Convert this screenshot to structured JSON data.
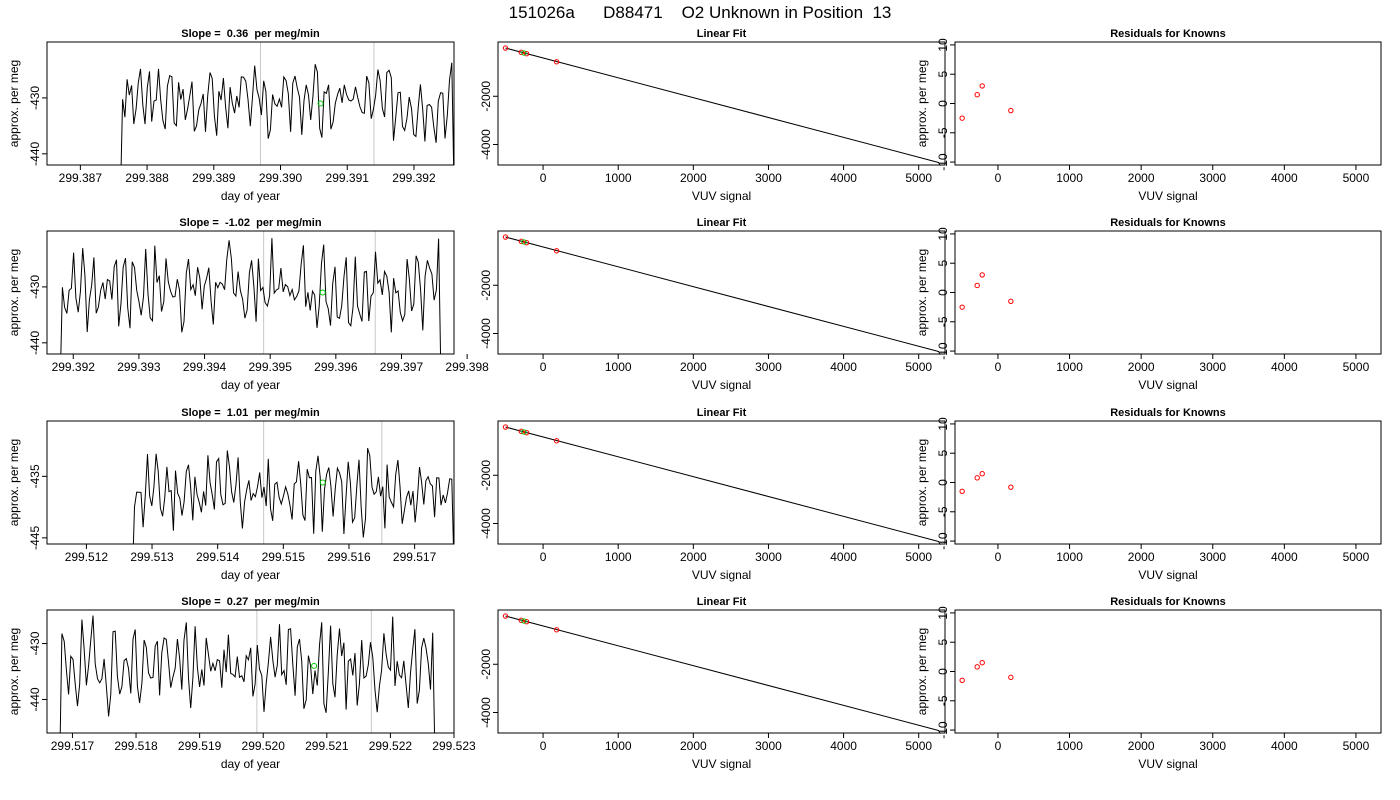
{
  "page_title": "151026a      D88471    O2 Unknown in Position  13",
  "colors": {
    "series_line": "#000000",
    "known_point": "#ff0000",
    "unknown_point": "#00cc00",
    "vertical_marker": "#c8c8c8"
  },
  "chart_data": [
    {
      "row": 1,
      "panel": "time-series",
      "type": "line",
      "title": "Slope =  0.36  per meg/min",
      "xlabel": "day of year",
      "ylabel": "approx. per meg",
      "xlim": [
        299.3865,
        299.3926
      ],
      "ylim": [
        -442,
        -420
      ],
      "xticks": [
        299.387,
        299.388,
        299.389,
        299.39,
        299.391,
        299.392
      ],
      "xtick_labels": [
        "299.387",
        "299.388",
        "299.389",
        "299.390",
        "299.391",
        "299.392"
      ],
      "yticks": [
        -430,
        -440
      ],
      "ytick_labels": [
        "-430",
        "-440"
      ],
      "vlines": [
        299.3897,
        299.3914
      ],
      "unknown_point": {
        "x": 299.3906,
        "y": -431
      },
      "x_start": 299.3876,
      "x_end": 299.3926,
      "n_points": 150,
      "y_mean": -430.5,
      "y_amp": 6,
      "seed": 3
    },
    {
      "row": 1,
      "panel": "linear-fit",
      "type": "scatter",
      "title": "Linear Fit",
      "xlabel": "VUV signal",
      "ylabel": "",
      "xlim": [
        -600,
        5350
      ],
      "ylim": [
        -4850,
        250
      ],
      "xticks": [
        0,
        1000,
        2000,
        3000,
        4000,
        5000
      ],
      "xtick_labels": [
        "0",
        "1000",
        "2000",
        "3000",
        "4000",
        "5000"
      ],
      "yticks": [
        -2000,
        -4000
      ],
      "ytick_labels": [
        "-2000",
        "-4000"
      ],
      "fit_line": {
        "x": [
          -500,
          5270
        ],
        "y": [
          0,
          -4750
        ]
      },
      "knowns": [
        {
          "x": -500,
          "y": 0
        },
        {
          "x": -290,
          "y": -180
        },
        {
          "x": -220,
          "y": -235
        },
        {
          "x": 180,
          "y": -570
        }
      ],
      "unknowns": [
        {
          "x": -255,
          "y": -205
        }
      ]
    },
    {
      "row": 1,
      "panel": "residuals",
      "type": "scatter",
      "title": "Residuals for Knowns",
      "xlabel": "VUV signal",
      "ylabel": "approx. per meg",
      "xlim": [
        -600,
        5350
      ],
      "ylim": [
        -10.5,
        10.5
      ],
      "xticks": [
        0,
        1000,
        2000,
        3000,
        4000,
        5000
      ],
      "xtick_labels": [
        "0",
        "1000",
        "2000",
        "3000",
        "4000",
        "5000"
      ],
      "yticks": [
        10,
        5,
        0,
        -5,
        -10
      ],
      "ytick_labels": [
        "10",
        "5",
        "0",
        "-5",
        "-10"
      ],
      "knowns": [
        {
          "x": -500,
          "y": -2.5
        },
        {
          "x": -290,
          "y": 1.5
        },
        {
          "x": -220,
          "y": 3
        },
        {
          "x": 180,
          "y": -1.2
        }
      ]
    },
    {
      "row": 2,
      "panel": "time-series",
      "type": "line",
      "title": "Slope =  -1.02  per meg/min",
      "xlabel": "day of year",
      "ylabel": "approx. per meg",
      "xlim": [
        299.3916,
        299.3978
      ],
      "ylim": [
        -442,
        -420
      ],
      "xticks": [
        299.392,
        299.393,
        299.394,
        299.395,
        299.396,
        299.397,
        299.398
      ],
      "xtick_labels": [
        "299.392",
        "299.393",
        "299.394",
        "299.395",
        "299.396",
        "299.397",
        "299.398"
      ],
      "yticks": [
        -430,
        -440
      ],
      "ytick_labels": [
        "-430",
        "-440"
      ],
      "vlines": [
        299.3949,
        299.3966
      ],
      "unknown_point": {
        "x": 299.3958,
        "y": -431
      },
      "x_start": 299.3918,
      "x_end": 299.3976,
      "n_points": 170,
      "y_mean": -430,
      "y_amp": 7,
      "seed": 7
    },
    {
      "row": 2,
      "panel": "linear-fit",
      "type": "scatter",
      "title": "Linear Fit",
      "xlabel": "VUV signal",
      "ylabel": "",
      "xlim": [
        -600,
        5350
      ],
      "ylim": [
        -4850,
        250
      ],
      "xticks": [
        0,
        1000,
        2000,
        3000,
        4000,
        5000
      ],
      "xtick_labels": [
        "0",
        "1000",
        "2000",
        "3000",
        "4000",
        "5000"
      ],
      "yticks": [
        -2000,
        -4000
      ],
      "ytick_labels": [
        "-2000",
        "-4000"
      ],
      "fit_line": {
        "x": [
          -500,
          5270
        ],
        "y": [
          0,
          -4750
        ]
      },
      "knowns": [
        {
          "x": -500,
          "y": 0
        },
        {
          "x": -290,
          "y": -180
        },
        {
          "x": -220,
          "y": -235
        },
        {
          "x": 180,
          "y": -570
        }
      ],
      "unknowns": [
        {
          "x": -255,
          "y": -205
        }
      ]
    },
    {
      "row": 2,
      "panel": "residuals",
      "type": "scatter",
      "title": "Residuals for Knowns",
      "xlabel": "VUV signal",
      "ylabel": "approx. per meg",
      "xlim": [
        -600,
        5350
      ],
      "ylim": [
        -10.5,
        10.5
      ],
      "xticks": [
        0,
        1000,
        2000,
        3000,
        4000,
        5000
      ],
      "xtick_labels": [
        "0",
        "1000",
        "2000",
        "3000",
        "4000",
        "5000"
      ],
      "yticks": [
        10,
        5,
        0,
        -5,
        -10
      ],
      "ytick_labels": [
        "10",
        "5",
        "0",
        "-5",
        "-10"
      ],
      "knowns": [
        {
          "x": -500,
          "y": -2.5
        },
        {
          "x": -290,
          "y": 1.2
        },
        {
          "x": -220,
          "y": 3
        },
        {
          "x": 180,
          "y": -1.5
        }
      ]
    },
    {
      "row": 3,
      "panel": "time-series",
      "type": "line",
      "title": "Slope =  1.01  per meg/min",
      "xlabel": "day of year",
      "ylabel": "approx. per meg",
      "xlim": [
        299.5114,
        299.5176
      ],
      "ylim": [
        -446,
        -426
      ],
      "xticks": [
        299.512,
        299.513,
        299.514,
        299.515,
        299.516,
        299.517
      ],
      "xtick_labels": [
        "299.512",
        "299.513",
        "299.514",
        "299.515",
        "299.516",
        "299.517"
      ],
      "yticks": [
        -435,
        -445
      ],
      "ytick_labels": [
        "-435",
        "-445"
      ],
      "vlines": [
        299.5147,
        299.5165
      ],
      "unknown_point": {
        "x": 299.5156,
        "y": -436
      },
      "x_start": 299.5127,
      "x_end": 299.5176,
      "n_points": 150,
      "y_mean": -437.5,
      "y_amp": 6,
      "seed": 11
    },
    {
      "row": 3,
      "panel": "linear-fit",
      "type": "scatter",
      "title": "Linear Fit",
      "xlabel": "VUV signal",
      "ylabel": "",
      "xlim": [
        -600,
        5350
      ],
      "ylim": [
        -4850,
        250
      ],
      "xticks": [
        0,
        1000,
        2000,
        3000,
        4000,
        5000
      ],
      "xtick_labels": [
        "0",
        "1000",
        "2000",
        "3000",
        "4000",
        "5000"
      ],
      "yticks": [
        -2000,
        -4000
      ],
      "ytick_labels": [
        "-2000",
        "-4000"
      ],
      "fit_line": {
        "x": [
          -500,
          5270
        ],
        "y": [
          0,
          -4750
        ]
      },
      "knowns": [
        {
          "x": -500,
          "y": 0
        },
        {
          "x": -290,
          "y": -180
        },
        {
          "x": -220,
          "y": -235
        },
        {
          "x": 180,
          "y": -570
        }
      ],
      "unknowns": [
        {
          "x": -255,
          "y": -205
        }
      ]
    },
    {
      "row": 3,
      "panel": "residuals",
      "type": "scatter",
      "title": "Residuals for Knowns",
      "xlabel": "VUV signal",
      "ylabel": "approx. per meg",
      "xlim": [
        -600,
        5350
      ],
      "ylim": [
        -10.5,
        10.5
      ],
      "xticks": [
        0,
        1000,
        2000,
        3000,
        4000,
        5000
      ],
      "xtick_labels": [
        "0",
        "1000",
        "2000",
        "3000",
        "4000",
        "5000"
      ],
      "yticks": [
        10,
        5,
        0,
        -5,
        -10
      ],
      "ytick_labels": [
        "10",
        "5",
        "0",
        "-5",
        "-10"
      ],
      "knowns": [
        {
          "x": -500,
          "y": -1.5
        },
        {
          "x": -290,
          "y": 0.8
        },
        {
          "x": -220,
          "y": 1.5
        },
        {
          "x": 180,
          "y": -0.8
        }
      ]
    },
    {
      "row": 4,
      "panel": "time-series",
      "type": "line",
      "title": "Slope =  0.27  per meg/min",
      "xlabel": "day of year",
      "ylabel": "approx. per meg",
      "xlim": [
        299.5166,
        299.523
      ],
      "ylim": [
        -446,
        -424
      ],
      "xticks": [
        299.517,
        299.518,
        299.519,
        299.52,
        299.521,
        299.522,
        299.523
      ],
      "xtick_labels": [
        "299.517",
        "299.518",
        "299.519",
        "299.520",
        "299.521",
        "299.522",
        "299.523"
      ],
      "yticks": [
        -430,
        -440
      ],
      "ytick_labels": [
        "-430",
        "-440"
      ],
      "vlines": [
        299.5199,
        299.5217
      ],
      "unknown_point": {
        "x": 299.5208,
        "y": -434
      },
      "x_start": 299.5168,
      "x_end": 299.5227,
      "n_points": 170,
      "y_mean": -434,
      "y_amp": 7,
      "seed": 19
    },
    {
      "row": 4,
      "panel": "linear-fit",
      "type": "scatter",
      "title": "Linear Fit",
      "xlabel": "VUV signal",
      "ylabel": "",
      "xlim": [
        -600,
        5350
      ],
      "ylim": [
        -4850,
        250
      ],
      "xticks": [
        0,
        1000,
        2000,
        3000,
        4000,
        5000
      ],
      "xtick_labels": [
        "0",
        "1000",
        "2000",
        "3000",
        "4000",
        "5000"
      ],
      "yticks": [
        -2000,
        -4000
      ],
      "ytick_labels": [
        "-2000",
        "-4000"
      ],
      "fit_line": {
        "x": [
          -500,
          5270
        ],
        "y": [
          0,
          -4750
        ]
      },
      "knowns": [
        {
          "x": -500,
          "y": 0
        },
        {
          "x": -290,
          "y": -180
        },
        {
          "x": -220,
          "y": -235
        },
        {
          "x": 180,
          "y": -570
        }
      ],
      "unknowns": [
        {
          "x": -255,
          "y": -205
        }
      ]
    },
    {
      "row": 4,
      "panel": "residuals",
      "type": "scatter",
      "title": "Residuals for Knowns",
      "xlabel": "VUV signal",
      "ylabel": "approx. per meg",
      "xlim": [
        -600,
        5350
      ],
      "ylim": [
        -10.5,
        10.5
      ],
      "xticks": [
        0,
        1000,
        2000,
        3000,
        4000,
        5000
      ],
      "xtick_labels": [
        "0",
        "1000",
        "2000",
        "3000",
        "4000",
        "5000"
      ],
      "yticks": [
        10,
        5,
        0,
        -5,
        -10
      ],
      "ytick_labels": [
        "10",
        "5",
        "0",
        "-5",
        "-10"
      ],
      "knowns": [
        {
          "x": -500,
          "y": -1.5
        },
        {
          "x": -290,
          "y": 0.8
        },
        {
          "x": -220,
          "y": 1.5
        },
        {
          "x": 180,
          "y": -1
        }
      ]
    }
  ]
}
